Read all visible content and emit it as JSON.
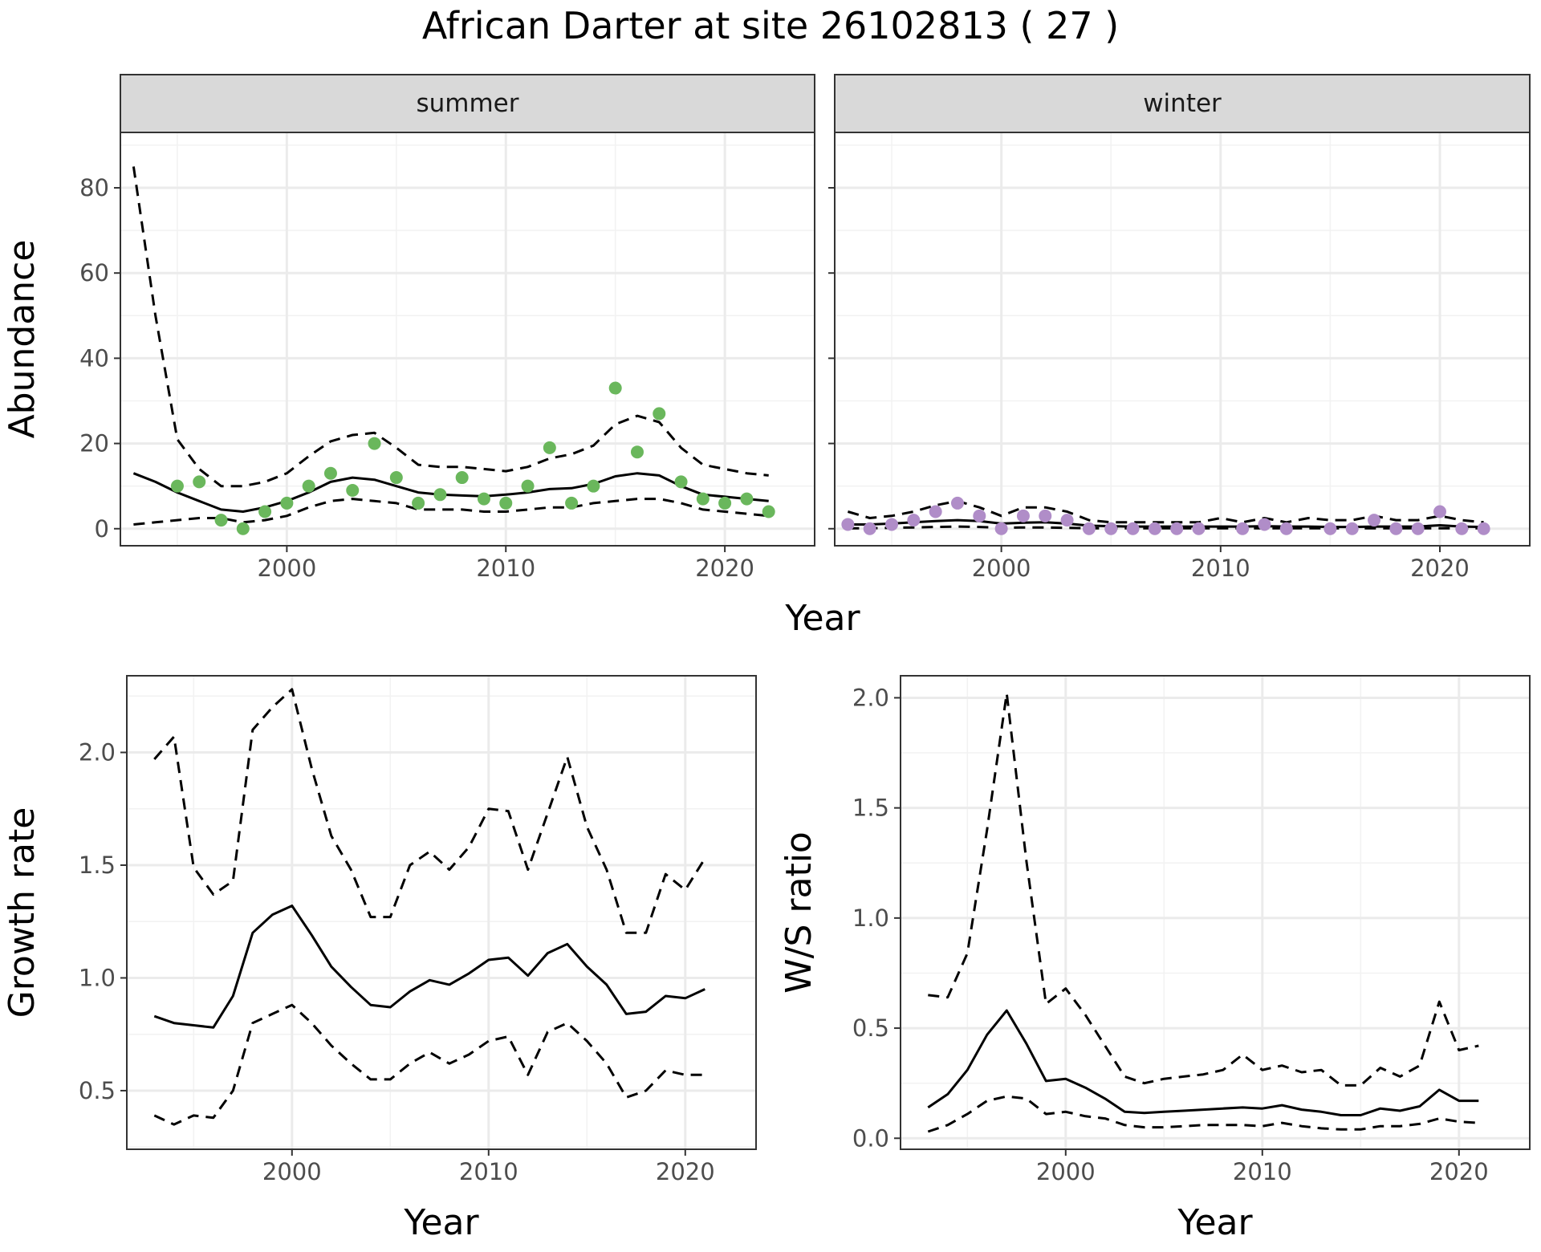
{
  "title": "African Darter at site 26102813 ( 27 )",
  "colors": {
    "summer_points": "#6ab75c",
    "winter_points": "#b08dc8",
    "line": "#000000",
    "strip_fill": "#d9d9d9",
    "grid": "#ebebeb"
  },
  "abundance_panel": {
    "ylabel": "Abundance",
    "xlabel": "Year",
    "xlim": [
      1992.4,
      2024.1
    ],
    "ylim": [
      -4,
      93
    ],
    "x_ticks": [
      2000,
      2010,
      2020
    ],
    "y_ticks": [
      0,
      20,
      40,
      60,
      80
    ]
  },
  "chart_data": [
    {
      "type": "line",
      "facet": "summer",
      "strip_label": "summer",
      "xlabel": "Year",
      "ylabel": "Abundance",
      "observed": {
        "x": [
          1995,
          1996,
          1997,
          1998,
          1999,
          2000,
          2001,
          2002,
          2003,
          2004,
          2005,
          2006,
          2007,
          2008,
          2009,
          2010,
          2011,
          2012,
          2013,
          2014,
          2015,
          2016,
          2017,
          2018,
          2019,
          2020,
          2021,
          2022
        ],
        "y": [
          10,
          11,
          2,
          0,
          4,
          6,
          10,
          13,
          9,
          20,
          12,
          6,
          8,
          12,
          7,
          6,
          10,
          19,
          6,
          10,
          33,
          18,
          27,
          11,
          7,
          6,
          7,
          4
        ]
      },
      "fit": {
        "x": [
          1993,
          1994,
          1995,
          1996,
          1997,
          1998,
          1999,
          2000,
          2001,
          2002,
          2003,
          2004,
          2005,
          2006,
          2007,
          2008,
          2009,
          2010,
          2011,
          2012,
          2013,
          2014,
          2015,
          2016,
          2017,
          2018,
          2019,
          2020,
          2021,
          2022
        ],
        "y": [
          13,
          11,
          8.5,
          6.5,
          4.5,
          4,
          5,
          6.5,
          8.5,
          11,
          12,
          11.5,
          10,
          8.5,
          8,
          7.8,
          7.6,
          8,
          8.5,
          9.3,
          9.5,
          10.5,
          12.3,
          13,
          12.5,
          10,
          8,
          7.5,
          7,
          6.5
        ],
        "lower": [
          1,
          1.5,
          2,
          2.5,
          2.5,
          1.5,
          2,
          3,
          5,
          6.5,
          7,
          6.5,
          6,
          4.5,
          4.5,
          4.5,
          4,
          4,
          4.5,
          5,
          5,
          6,
          6.5,
          7,
          7,
          6,
          4.5,
          4,
          3.5,
          3
        ],
        "upper": [
          85,
          50,
          21,
          14,
          10,
          10,
          11,
          13,
          17,
          20.5,
          22,
          22.5,
          19,
          15,
          14.5,
          14.5,
          14,
          13.5,
          14.5,
          16.5,
          17.5,
          19.5,
          24.5,
          26.5,
          25,
          19,
          15,
          14,
          13,
          12.5
        ]
      }
    },
    {
      "type": "line",
      "facet": "winter",
      "strip_label": "winter",
      "xlabel": "Year",
      "ylabel": "Abundance",
      "observed": {
        "x": [
          1993,
          1994,
          1995,
          1996,
          1997,
          1998,
          1999,
          2000,
          2001,
          2002,
          2003,
          2004,
          2005,
          2006,
          2007,
          2008,
          2009,
          2011,
          2012,
          2013,
          2015,
          2016,
          2017,
          2018,
          2019,
          2020,
          2021,
          2022
        ],
        "y": [
          1,
          0,
          1,
          2,
          4,
          6,
          3,
          0,
          3,
          3,
          2,
          0,
          0,
          0,
          0,
          0,
          0,
          0,
          1,
          0,
          0,
          0,
          2,
          0,
          0,
          4,
          0,
          0
        ]
      },
      "fit": {
        "x": [
          1993,
          1994,
          1995,
          1996,
          1997,
          1998,
          1999,
          2000,
          2001,
          2002,
          2003,
          2004,
          2005,
          2006,
          2007,
          2008,
          2009,
          2010,
          2011,
          2012,
          2013,
          2014,
          2015,
          2016,
          2017,
          2018,
          2019,
          2020,
          2021,
          2022
        ],
        "y": [
          1,
          1,
          1.2,
          1.5,
          1.8,
          2,
          1.8,
          1.2,
          1.4,
          1.5,
          1.2,
          0.7,
          0.6,
          0.5,
          0.5,
          0.5,
          0.5,
          0.5,
          0.5,
          0.6,
          0.5,
          0.5,
          0.4,
          0.4,
          0.5,
          0.5,
          0.5,
          0.8,
          0.5,
          0.4
        ],
        "lower": [
          0.1,
          0.1,
          0.2,
          0.3,
          0.4,
          0.5,
          0.4,
          0.2,
          0.3,
          0.3,
          0.2,
          0.1,
          0.1,
          0.1,
          0.1,
          0.1,
          0.1,
          0.1,
          0.1,
          0.1,
          0.1,
          0.1,
          0.1,
          0.1,
          0.1,
          0.1,
          0.1,
          0.1,
          0.1,
          0.1
        ],
        "upper": [
          4,
          2.5,
          3,
          4,
          5.5,
          6.5,
          5,
          3,
          5,
          5,
          4,
          2,
          1.5,
          1.5,
          1.5,
          1.5,
          1.5,
          2.5,
          1.5,
          2.5,
          1.5,
          2.5,
          2,
          2,
          3,
          2,
          2,
          3,
          2,
          1.5
        ]
      }
    },
    {
      "type": "line",
      "panel": "growth_rate",
      "xlabel": "Year",
      "ylabel": "Growth rate",
      "xlim": [
        1991.6,
        2023.6
      ],
      "ylim": [
        0.24,
        2.34
      ],
      "x_ticks": [
        2000,
        2010,
        2020
      ],
      "y_ticks": [
        0.5,
        1.0,
        1.5,
        2.0
      ],
      "y_tick_labels": [
        "0.5",
        "1.0",
        "1.5",
        "2.0"
      ],
      "x": [
        1993,
        1994,
        1995,
        1996,
        1997,
        1998,
        1999,
        2000,
        2001,
        2002,
        2003,
        2004,
        2005,
        2006,
        2007,
        2008,
        2009,
        2010,
        2011,
        2012,
        2013,
        2014,
        2015,
        2016,
        2017,
        2018,
        2019,
        2020,
        2021
      ],
      "y": [
        0.83,
        0.8,
        0.79,
        0.78,
        0.92,
        1.2,
        1.28,
        1.32,
        1.19,
        1.05,
        0.96,
        0.88,
        0.87,
        0.94,
        0.99,
        0.97,
        1.02,
        1.08,
        1.09,
        1.01,
        1.11,
        1.15,
        1.05,
        0.97,
        0.84,
        0.85,
        0.92,
        0.91,
        0.95
      ],
      "lower": [
        0.39,
        0.35,
        0.39,
        0.38,
        0.5,
        0.8,
        0.84,
        0.88,
        0.8,
        0.7,
        0.62,
        0.55,
        0.55,
        0.62,
        0.67,
        0.62,
        0.66,
        0.72,
        0.74,
        0.57,
        0.76,
        0.8,
        0.72,
        0.62,
        0.47,
        0.5,
        0.59,
        0.57,
        0.57
      ],
      "upper": [
        1.97,
        2.07,
        1.49,
        1.37,
        1.43,
        2.1,
        2.2,
        2.28,
        1.93,
        1.63,
        1.48,
        1.27,
        1.27,
        1.5,
        1.56,
        1.48,
        1.58,
        1.75,
        1.74,
        1.48,
        1.73,
        1.98,
        1.67,
        1.48,
        1.2,
        1.2,
        1.46,
        1.39,
        1.53
      ]
    },
    {
      "type": "line",
      "panel": "ws_ratio",
      "xlabel": "Year",
      "ylabel": "W/S ratio",
      "xlim": [
        1991.6,
        2023.6
      ],
      "ylim": [
        -0.05,
        2.1
      ],
      "x_ticks": [
        2000,
        2010,
        2020
      ],
      "y_ticks": [
        0.0,
        0.5,
        1.0,
        1.5,
        2.0
      ],
      "y_tick_labels": [
        "0.0",
        "0.5",
        "1.0",
        "1.5",
        "2.0"
      ],
      "x": [
        1993,
        1994,
        1995,
        1996,
        1997,
        1998,
        1999,
        2000,
        2001,
        2002,
        2003,
        2004,
        2005,
        2006,
        2007,
        2008,
        2009,
        2010,
        2011,
        2012,
        2013,
        2014,
        2015,
        2016,
        2017,
        2018,
        2019,
        2020,
        2021
      ],
      "y": [
        0.14,
        0.2,
        0.31,
        0.47,
        0.58,
        0.43,
        0.26,
        0.27,
        0.23,
        0.18,
        0.12,
        0.115,
        0.12,
        0.125,
        0.13,
        0.135,
        0.14,
        0.135,
        0.15,
        0.13,
        0.12,
        0.105,
        0.105,
        0.135,
        0.125,
        0.145,
        0.22,
        0.17,
        0.17
      ],
      "lower": [
        0.03,
        0.06,
        0.11,
        0.17,
        0.19,
        0.18,
        0.11,
        0.12,
        0.1,
        0.09,
        0.06,
        0.05,
        0.05,
        0.055,
        0.06,
        0.06,
        0.06,
        0.055,
        0.07,
        0.055,
        0.045,
        0.04,
        0.04,
        0.055,
        0.055,
        0.065,
        0.09,
        0.075,
        0.07
      ],
      "upper": [
        0.65,
        0.64,
        0.84,
        1.4,
        2.02,
        1.26,
        0.61,
        0.68,
        0.56,
        0.42,
        0.28,
        0.25,
        0.27,
        0.28,
        0.29,
        0.31,
        0.38,
        0.31,
        0.33,
        0.3,
        0.31,
        0.24,
        0.24,
        0.32,
        0.28,
        0.33,
        0.62,
        0.4,
        0.42
      ]
    }
  ]
}
